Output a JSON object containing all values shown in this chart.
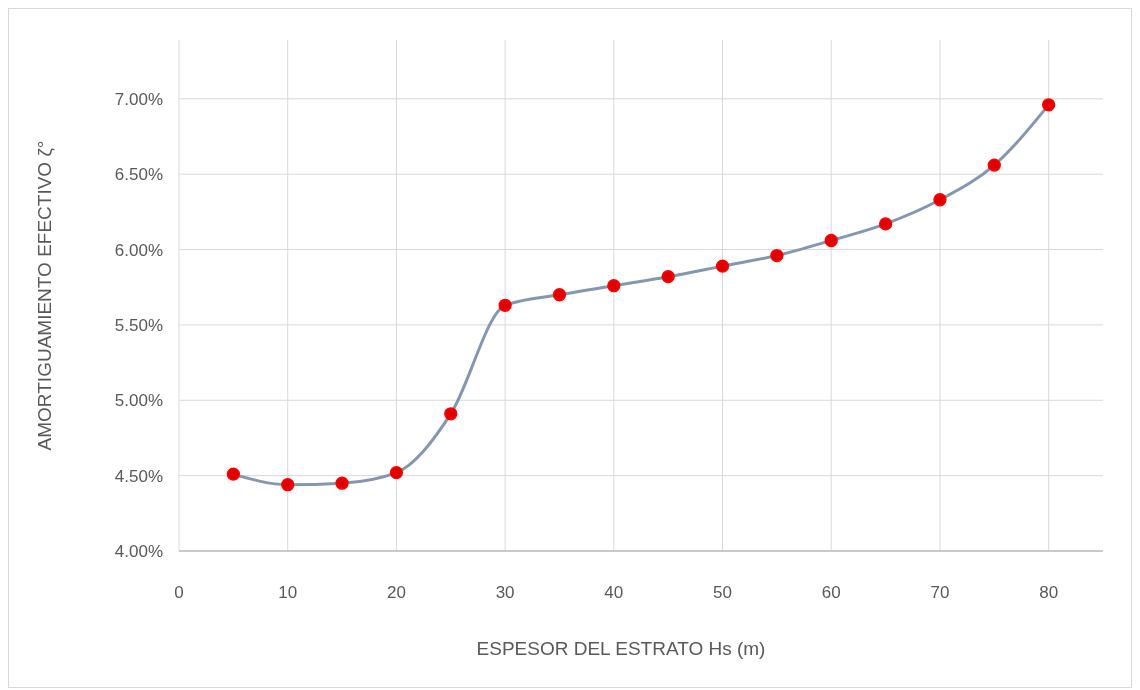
{
  "chart_data": {
    "type": "line",
    "xlabel": "ESPESOR DEL ESTRATO Hs (m)",
    "ylabel": "AMORTIGUAMIENTO EFECTIVO ζ°",
    "x": [
      5,
      10,
      15,
      20,
      25,
      30,
      35,
      40,
      45,
      50,
      55,
      60,
      65,
      70,
      75,
      80
    ],
    "series": [
      {
        "color": "#8497b0",
        "values": [
          4.51,
          4.44,
          4.45,
          4.52,
          4.91,
          5.63,
          5.7,
          5.76,
          5.82,
          5.89,
          5.96,
          6.06,
          6.17,
          6.33,
          6.56,
          6.96
        ]
      }
    ],
    "xlim": [
      0,
      85
    ],
    "xticks": [
      0,
      10,
      20,
      30,
      40,
      50,
      60,
      70,
      80
    ],
    "ylim": [
      4,
      7.39
    ],
    "yticks": [
      {
        "value": 4,
        "label": "4.00%"
      },
      {
        "value": 4.5,
        "label": "4.50%"
      },
      {
        "value": 5,
        "label": "5.00%"
      },
      {
        "value": 5.5,
        "label": "5.50%"
      },
      {
        "value": 6,
        "label": "6.00%"
      },
      {
        "value": 6.5,
        "label": "6.50%"
      },
      {
        "value": 7,
        "label": "7.00%"
      }
    ],
    "grid": true,
    "marker": "circle",
    "line_style": "solid"
  }
}
